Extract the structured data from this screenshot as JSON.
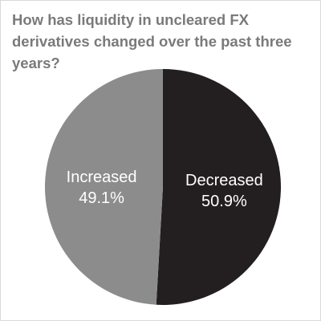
{
  "chart_data": {
    "type": "pie",
    "title": "How has liquidity in uncleared FX derivatives changed over the past three years?",
    "slices": [
      {
        "label": "Decreased",
        "value": 50.9,
        "value_label": "50.9%",
        "color": "#231f20"
      },
      {
        "label": "Increased",
        "value": 49.1,
        "value_label": "49.1%",
        "color": "#8c8c8c"
      }
    ],
    "legend": "none"
  }
}
